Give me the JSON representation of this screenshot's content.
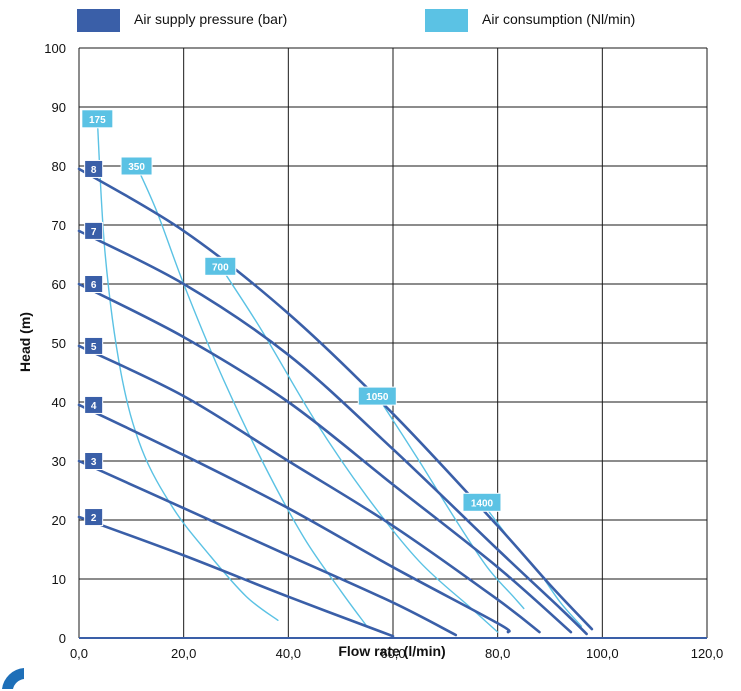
{
  "chart_data": {
    "type": "line",
    "xlabel": "Flow rate (l/min)",
    "ylabel": "Head (m)",
    "xlim": [
      0,
      120
    ],
    "ylim": [
      0,
      100
    ],
    "x_ticks": [
      "0,0",
      "20,0",
      "40,0",
      "60,0",
      "80,0",
      "100,0",
      "120,0"
    ],
    "y_ticks": [
      "0",
      "10",
      "20",
      "30",
      "40",
      "50",
      "60",
      "70",
      "80",
      "90",
      "100"
    ],
    "grid": true,
    "legend": {
      "placement": "top",
      "entries": [
        {
          "label": "Air supply pressure (bar)",
          "color": "#3a5fa8"
        },
        {
          "label": "Air consumption (Nl/min)",
          "color": "#5bc2e4"
        }
      ]
    },
    "series": [
      {
        "group": "Air supply pressure (bar)",
        "name": "2",
        "color": "#3a5fa8",
        "points": [
          [
            0,
            20.5
          ],
          [
            20,
            14
          ],
          [
            40,
            7
          ],
          [
            60,
            0.3
          ]
        ]
      },
      {
        "group": "Air supply pressure (bar)",
        "name": "3",
        "color": "#3a5fa8",
        "points": [
          [
            0,
            30
          ],
          [
            20,
            22
          ],
          [
            40,
            14
          ],
          [
            60,
            6
          ],
          [
            72,
            0.5
          ]
        ]
      },
      {
        "group": "Air supply pressure (bar)",
        "name": "4",
        "color": "#3a5fa8",
        "points": [
          [
            0,
            39.5
          ],
          [
            20,
            31
          ],
          [
            40,
            22
          ],
          [
            60,
            12
          ],
          [
            80,
            2.5
          ],
          [
            82,
            1
          ]
        ]
      },
      {
        "group": "Air supply pressure (bar)",
        "name": "5",
        "color": "#3a5fa8",
        "points": [
          [
            0,
            49.5
          ],
          [
            20,
            41
          ],
          [
            40,
            30
          ],
          [
            60,
            19
          ],
          [
            80,
            6.5
          ],
          [
            88,
            1
          ]
        ]
      },
      {
        "group": "Air supply pressure (bar)",
        "name": "6",
        "color": "#3a5fa8",
        "points": [
          [
            0,
            60
          ],
          [
            20,
            51
          ],
          [
            40,
            40
          ],
          [
            60,
            26
          ],
          [
            80,
            12
          ],
          [
            94,
            1
          ]
        ]
      },
      {
        "group": "Air supply pressure (bar)",
        "name": "7",
        "color": "#3a5fa8",
        "points": [
          [
            0,
            69
          ],
          [
            20,
            60
          ],
          [
            40,
            48
          ],
          [
            60,
            32
          ],
          [
            80,
            15
          ],
          [
            92,
            5
          ],
          [
            97,
            0.7
          ]
        ]
      },
      {
        "group": "Air supply pressure (bar)",
        "name": "8",
        "color": "#3a5fa8",
        "points": [
          [
            0,
            79.5
          ],
          [
            20,
            69
          ],
          [
            40,
            55
          ],
          [
            60,
            38
          ],
          [
            80,
            19
          ],
          [
            90,
            9
          ],
          [
            98,
            1.5
          ]
        ]
      },
      {
        "group": "Air consumption (Nl/min)",
        "name": "175",
        "color": "#5bc2e4",
        "points": [
          [
            3.5,
            88
          ],
          [
            5,
            65
          ],
          [
            8,
            45
          ],
          [
            12,
            32
          ],
          [
            18,
            22
          ],
          [
            25,
            14
          ],
          [
            32,
            7
          ],
          [
            38,
            3
          ]
        ]
      },
      {
        "group": "Air consumption (Nl/min)",
        "name": "350",
        "color": "#5bc2e4",
        "points": [
          [
            11,
            80
          ],
          [
            15,
            72
          ],
          [
            20,
            60
          ],
          [
            27,
            45
          ],
          [
            35,
            30
          ],
          [
            43,
            17
          ],
          [
            50,
            8
          ],
          [
            55,
            2
          ]
        ]
      },
      {
        "group": "Air consumption (Nl/min)",
        "name": "700",
        "color": "#5bc2e4",
        "points": [
          [
            27,
            63
          ],
          [
            35,
            52
          ],
          [
            45,
            37
          ],
          [
            55,
            24
          ],
          [
            65,
            13
          ],
          [
            75,
            5
          ],
          [
            80,
            1
          ]
        ]
      },
      {
        "group": "Air consumption (Nl/min)",
        "name": "1050",
        "color": "#5bc2e4",
        "points": [
          [
            57,
            41
          ],
          [
            65,
            30
          ],
          [
            72,
            20
          ],
          [
            78,
            12
          ],
          [
            83,
            7
          ],
          [
            85,
            5
          ]
        ]
      },
      {
        "group": "Air consumption (Nl/min)",
        "name": "1400",
        "color": "#5bc2e4",
        "points": [
          [
            77,
            23
          ],
          [
            83,
            16
          ],
          [
            88,
            11
          ],
          [
            92,
            6
          ],
          [
            96,
            2
          ]
        ]
      }
    ]
  }
}
